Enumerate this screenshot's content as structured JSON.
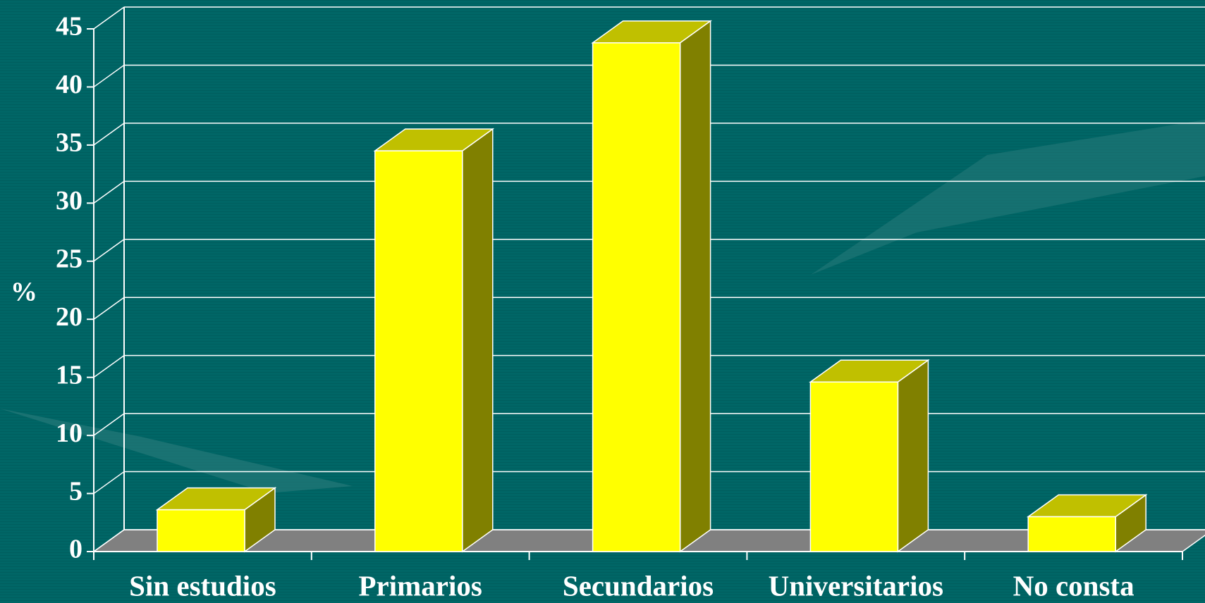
{
  "chart_data": {
    "type": "bar3d",
    "y_label": "%",
    "categories": [
      "Sin estudios",
      "Primarios",
      "Secundarios",
      "Universitarios",
      "No consta"
    ],
    "values": [
      3.6,
      34.5,
      43.8,
      14.6,
      3.0
    ],
    "color": "#ffff00",
    "top_color": "#c0c000",
    "side_color": "#808000",
    "ylim": [
      0,
      45
    ],
    "yticks": [
      0,
      5,
      10,
      15,
      20,
      25,
      30,
      35,
      40,
      45
    ],
    "grid": true
  }
}
